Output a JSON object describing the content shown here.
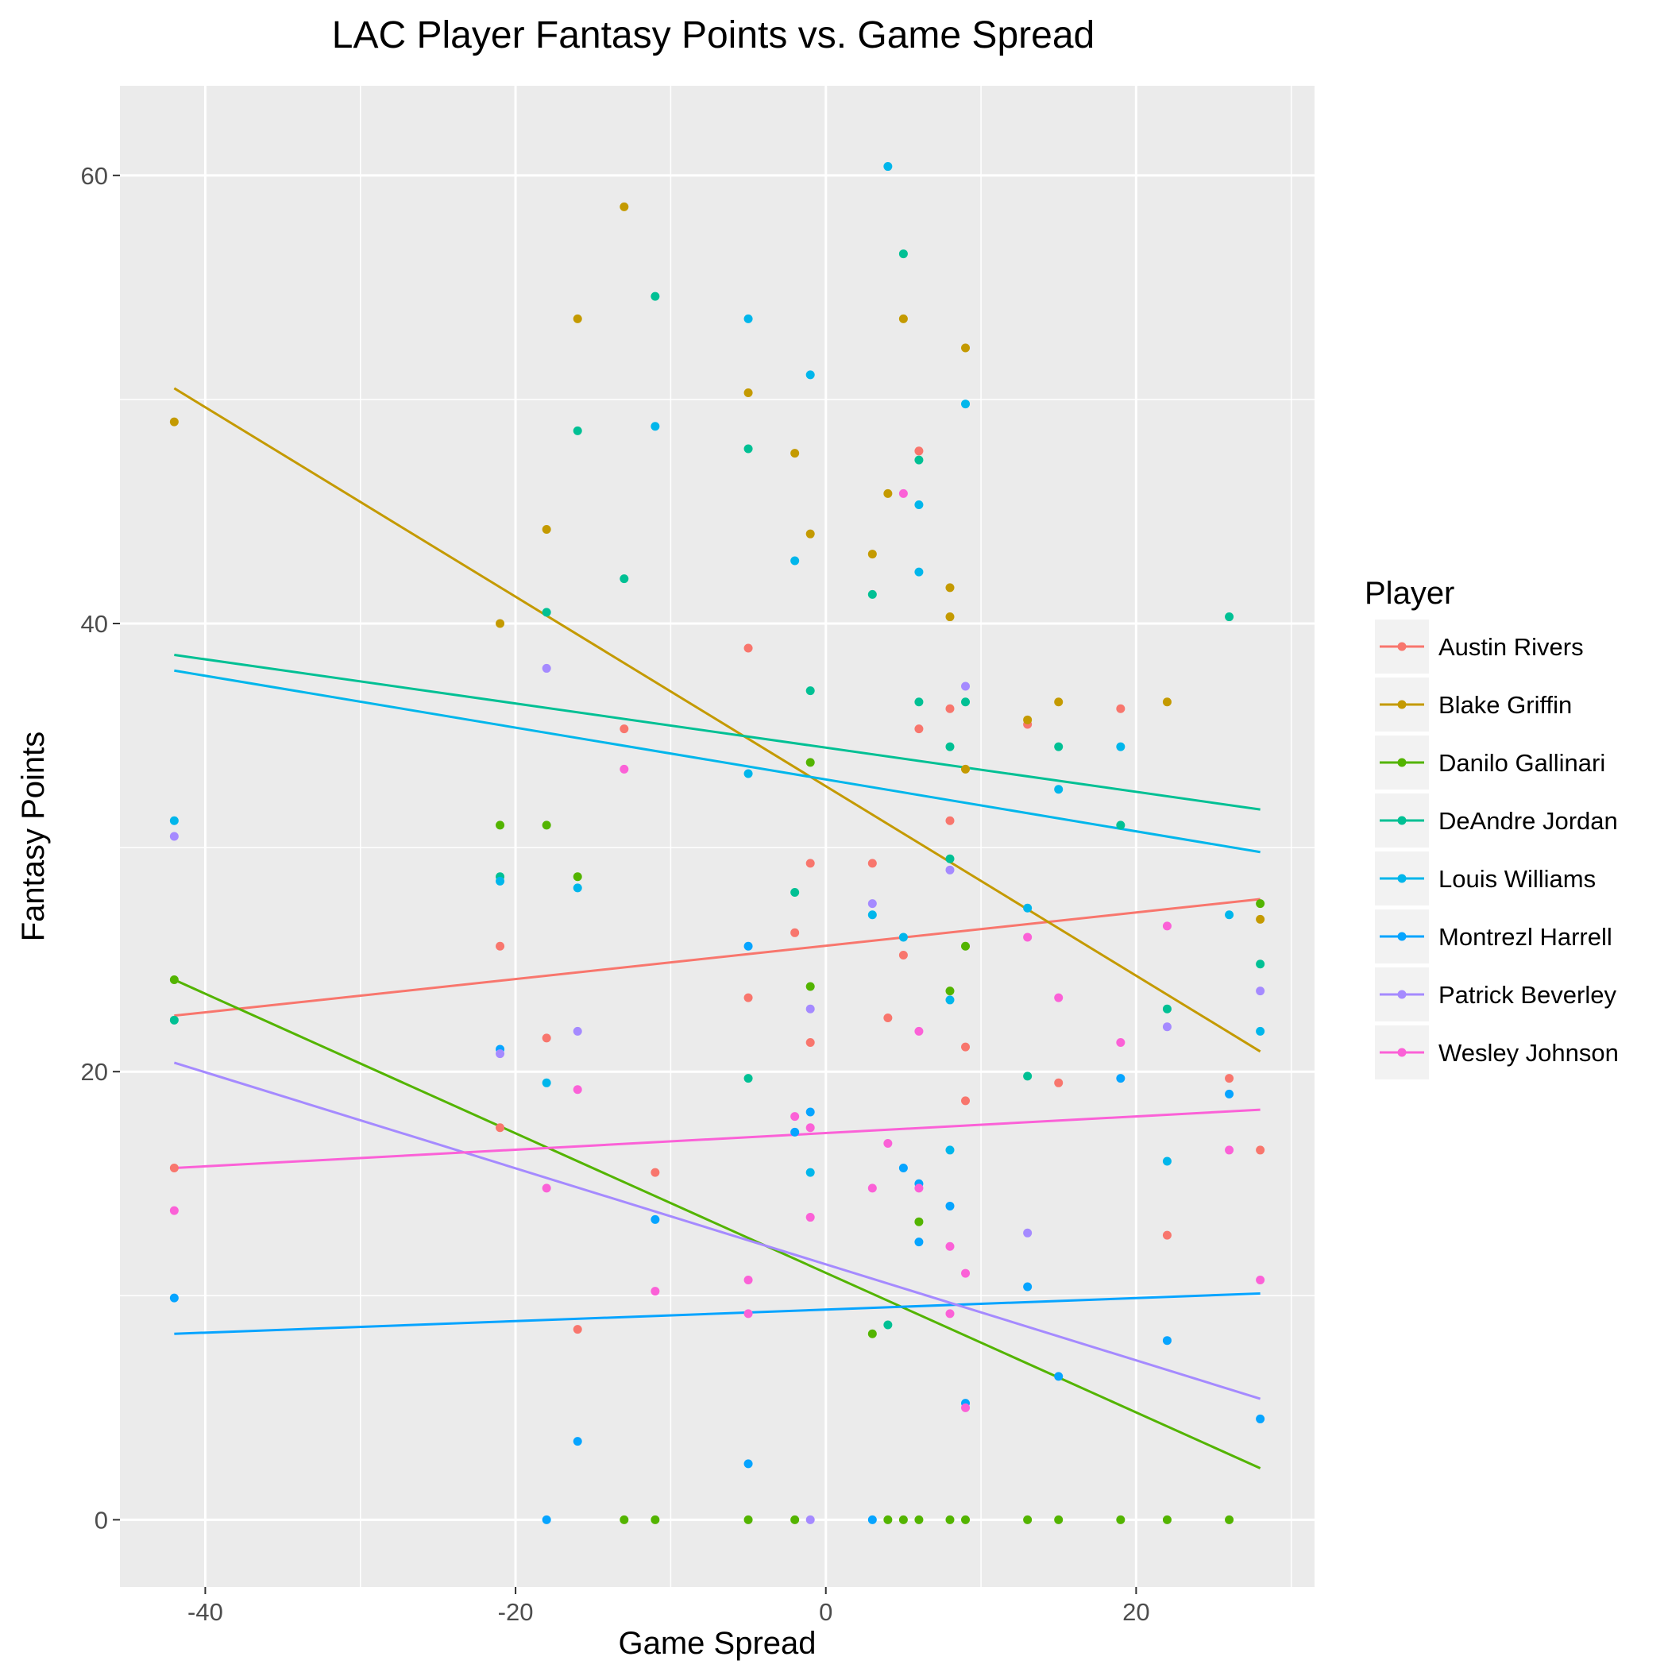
{
  "chart_data": {
    "type": "scatter",
    "title": "LAC Player Fantasy Points vs. Game Spread",
    "xlabel": "Game Spread",
    "ylabel": "Fantasy Points",
    "xlim": [
      -45.5,
      31.5
    ],
    "ylim": [
      -3,
      64
    ],
    "x_ticks": [
      -40,
      -20,
      0,
      20
    ],
    "y_ticks": [
      0,
      20,
      40,
      60
    ],
    "grid": true,
    "legend": {
      "title": "Player",
      "position": "right"
    },
    "trendlines": true,
    "series": [
      {
        "name": "Austin Rivers",
        "color": "#F8766D",
        "trend": {
          "x": [
            -42,
            28
          ],
          "y": [
            22.5,
            27.7
          ]
        },
        "points": [
          [
            -42,
            15.7
          ],
          [
            -21,
            17.5
          ],
          [
            -21,
            25.6
          ],
          [
            -18,
            21.5
          ],
          [
            -16,
            8.5
          ],
          [
            -13,
            35.3
          ],
          [
            -11,
            15.5
          ],
          [
            -5,
            23.3
          ],
          [
            -5,
            38.9
          ],
          [
            -2,
            26.2
          ],
          [
            -1,
            29.3
          ],
          [
            -1,
            21.3
          ],
          [
            3,
            29.3
          ],
          [
            4,
            22.4
          ],
          [
            5,
            25.2
          ],
          [
            6,
            35.3
          ],
          [
            6,
            47.7
          ],
          [
            8,
            36.2
          ],
          [
            8,
            31.2
          ],
          [
            9,
            18.7
          ],
          [
            9,
            21.1
          ],
          [
            13,
            35.5
          ],
          [
            15,
            19.5
          ],
          [
            19,
            36.2
          ],
          [
            22,
            12.7
          ],
          [
            26,
            19.7
          ],
          [
            28,
            16.5
          ]
        ]
      },
      {
        "name": "Blake Griffin",
        "color": "#C49A00",
        "trend": {
          "x": [
            -42,
            28
          ],
          "y": [
            50.5,
            20.9
          ]
        },
        "points": [
          [
            -42,
            49.0
          ],
          [
            -21,
            40.0
          ],
          [
            -18,
            44.2
          ],
          [
            -16,
            53.6
          ],
          [
            -13,
            58.6
          ],
          [
            -5,
            50.3
          ],
          [
            -2,
            47.6
          ],
          [
            -1,
            44.0
          ],
          [
            3,
            43.1
          ],
          [
            4,
            45.8
          ],
          [
            5,
            53.6
          ],
          [
            8,
            41.6
          ],
          [
            8,
            40.3
          ],
          [
            9,
            33.5
          ],
          [
            9,
            52.3
          ],
          [
            13,
            35.7
          ],
          [
            15,
            36.5
          ],
          [
            22,
            36.5
          ],
          [
            28,
            26.8
          ]
        ]
      },
      {
        "name": "Danilo Gallinari",
        "color": "#53B400",
        "trend": {
          "x": [
            -42,
            28
          ],
          "y": [
            24.1,
            2.3
          ]
        },
        "points": [
          [
            -42,
            24.1
          ],
          [
            -21,
            31.0
          ],
          [
            -18,
            31.0
          ],
          [
            -16,
            28.7
          ],
          [
            -13,
            0
          ],
          [
            -11,
            0
          ],
          [
            -5,
            0
          ],
          [
            -2,
            0
          ],
          [
            -1,
            33.8
          ],
          [
            -1,
            23.8
          ],
          [
            3,
            8.3
          ],
          [
            4,
            0
          ],
          [
            5,
            0
          ],
          [
            6,
            13.3
          ],
          [
            6,
            0
          ],
          [
            8,
            23.6
          ],
          [
            8,
            0
          ],
          [
            9,
            25.6
          ],
          [
            9,
            0
          ],
          [
            13,
            0
          ],
          [
            15,
            0
          ],
          [
            19,
            0
          ],
          [
            22,
            0
          ],
          [
            26,
            0
          ],
          [
            28,
            27.5
          ]
        ]
      },
      {
        "name": "DeAndre Jordan",
        "color": "#00C094",
        "trend": {
          "x": [
            -42,
            28
          ],
          "y": [
            38.6,
            31.7
          ]
        },
        "points": [
          [
            -42,
            22.3
          ],
          [
            -21,
            28.7
          ],
          [
            -18,
            40.5
          ],
          [
            -16,
            48.6
          ],
          [
            -13,
            42.0
          ],
          [
            -11,
            54.6
          ],
          [
            -5,
            19.7
          ],
          [
            -5,
            47.8
          ],
          [
            -2,
            28.0
          ],
          [
            -1,
            37.0
          ],
          [
            3,
            41.3
          ],
          [
            4,
            8.7
          ],
          [
            5,
            56.5
          ],
          [
            6,
            47.3
          ],
          [
            6,
            36.5
          ],
          [
            8,
            34.5
          ],
          [
            8,
            29.5
          ],
          [
            9,
            36.5
          ],
          [
            13,
            19.8
          ],
          [
            15,
            34.5
          ],
          [
            19,
            31.0
          ],
          [
            22,
            22.8
          ],
          [
            26,
            40.3
          ],
          [
            28,
            24.8
          ]
        ]
      },
      {
        "name": "Louis Williams",
        "color": "#00B6EB",
        "trend": {
          "x": [
            -42,
            28
          ],
          "y": [
            37.9,
            29.8
          ]
        },
        "points": [
          [
            -42,
            31.2
          ],
          [
            -21,
            28.5
          ],
          [
            -18,
            19.5
          ],
          [
            -16,
            28.2
          ],
          [
            -11,
            48.8
          ],
          [
            -5,
            53.6
          ],
          [
            -5,
            33.3
          ],
          [
            -2,
            42.8
          ],
          [
            -1,
            51.1
          ],
          [
            -1,
            15.5
          ],
          [
            3,
            27.0
          ],
          [
            4,
            60.4
          ],
          [
            5,
            26.0
          ],
          [
            6,
            45.3
          ],
          [
            6,
            42.3
          ],
          [
            8,
            16.5
          ],
          [
            8,
            23.2
          ],
          [
            9,
            49.8
          ],
          [
            13,
            27.3
          ],
          [
            15,
            32.6
          ],
          [
            19,
            34.5
          ],
          [
            22,
            16.0
          ],
          [
            26,
            27.0
          ],
          [
            28,
            21.8
          ]
        ]
      },
      {
        "name": "Montrezl Harrell",
        "color": "#06A4FF",
        "trend": {
          "x": [
            -42,
            28
          ],
          "y": [
            8.3,
            10.1
          ]
        },
        "points": [
          [
            -42,
            9.9
          ],
          [
            -21,
            21.0
          ],
          [
            -18,
            0
          ],
          [
            -16,
            3.5
          ],
          [
            -11,
            13.4
          ],
          [
            -5,
            25.6
          ],
          [
            -5,
            2.5
          ],
          [
            -2,
            17.3
          ],
          [
            -1,
            18.2
          ],
          [
            3,
            0
          ],
          [
            5,
            15.7
          ],
          [
            6,
            15.0
          ],
          [
            6,
            12.4
          ],
          [
            8,
            14.0
          ],
          [
            9,
            5.2
          ],
          [
            13,
            10.4
          ],
          [
            15,
            6.4
          ],
          [
            19,
            19.7
          ],
          [
            22,
            8.0
          ],
          [
            26,
            19.0
          ],
          [
            28,
            4.5
          ]
        ]
      },
      {
        "name": "Patrick Beverley",
        "color": "#A58AFF",
        "trend": {
          "x": [
            -42,
            28
          ],
          "y": [
            20.4,
            5.4
          ]
        },
        "points": [
          [
            -42,
            30.5
          ],
          [
            -21,
            20.8
          ],
          [
            -18,
            38.0
          ],
          [
            -16,
            21.8
          ],
          [
            -1,
            22.8
          ],
          [
            -1,
            0
          ],
          [
            3,
            27.5
          ],
          [
            8,
            29.0
          ],
          [
            9,
            37.2
          ],
          [
            13,
            12.8
          ],
          [
            22,
            22.0
          ],
          [
            28,
            23.6
          ]
        ]
      },
      {
        "name": "Wesley Johnson",
        "color": "#FB61D7",
        "trend": {
          "x": [
            -42,
            28
          ],
          "y": [
            15.7,
            18.3
          ]
        },
        "points": [
          [
            -42,
            13.8
          ],
          [
            -18,
            14.8
          ],
          [
            -16,
            19.2
          ],
          [
            -13,
            33.5
          ],
          [
            -11,
            10.2
          ],
          [
            -5,
            10.7
          ],
          [
            -5,
            9.2
          ],
          [
            -2,
            18.0
          ],
          [
            -1,
            17.5
          ],
          [
            -1,
            13.5
          ],
          [
            3,
            14.8
          ],
          [
            4,
            16.8
          ],
          [
            5,
            45.8
          ],
          [
            6,
            21.8
          ],
          [
            6,
            14.8
          ],
          [
            8,
            12.2
          ],
          [
            8,
            9.2
          ],
          [
            9,
            11.0
          ],
          [
            9,
            5.0
          ],
          [
            13,
            26.0
          ],
          [
            15,
            23.3
          ],
          [
            19,
            21.3
          ],
          [
            22,
            26.5
          ],
          [
            26,
            16.5
          ],
          [
            28,
            10.7
          ]
        ]
      }
    ]
  }
}
